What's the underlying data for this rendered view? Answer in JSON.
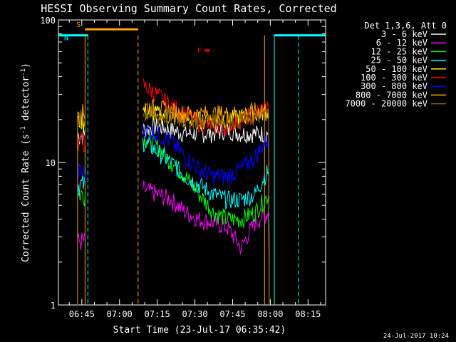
{
  "chart_data": {
    "type": "line",
    "title": "HESSI Observing Summary Count Rates, Corrected",
    "xlabel": "Start Time (23-Jul-17 06:35:42)",
    "ylabel": "Corrected Count Rate (s⁻¹ detector⁻¹)",
    "ylabel_main": "Corrected Count Rate (s",
    "ylabel_mid": " detector",
    "ylabel_end": ")",
    "ylabel_sup": "-1",
    "yscale": "log",
    "ylim": [
      1,
      100
    ],
    "xlim_minutes": [
      35.7,
      142
    ],
    "x_ticks": [
      {
        "m": 45,
        "label": "06:45"
      },
      {
        "m": 60,
        "label": "07:00"
      },
      {
        "m": 75,
        "label": "07:15"
      },
      {
        "m": 90,
        "label": "07:30"
      },
      {
        "m": 105,
        "label": "07:45"
      },
      {
        "m": 120,
        "label": "08:00"
      },
      {
        "m": 135,
        "label": "08:15"
      }
    ],
    "y_ticks": [
      {
        "v": 1,
        "label": "1"
      },
      {
        "v": 10,
        "label": "10"
      },
      {
        "v": 100,
        "label": "100"
      }
    ],
    "legend_header": "Det 1,3,6, Att 0",
    "legend_placement": "right",
    "series": [
      {
        "name": "3 - 6 keV",
        "color": "#ffffff",
        "seg1": 15.5,
        "seg2": [
          17,
          18,
          17,
          16,
          16,
          16,
          17,
          16,
          16,
          16
        ]
      },
      {
        "name": "6 - 12 keV",
        "color": "#ff00ff",
        "seg1": 2.8,
        "seg2": [
          6.5,
          6.0,
          5.5,
          4.5,
          4.0,
          3.8,
          3.5,
          2.5,
          3.8,
          4.5
        ]
      },
      {
        "name": "12 - 25 keV",
        "color": "#00ff00",
        "seg1": 6.0,
        "seg2": [
          15,
          13,
          10,
          8,
          6,
          4.5,
          4.0,
          4.0,
          4.5,
          6.0
        ]
      },
      {
        "name": "25 - 50 keV",
        "color": "#00ffff",
        "seg1": 7.0,
        "seg2": [
          14,
          12,
          10,
          8,
          7,
          6,
          5.5,
          5.5,
          6.0,
          9.0
        ]
      },
      {
        "name": "50 - 100 keV",
        "color": "#ffff00",
        "seg1": 20.0,
        "seg2": [
          23,
          22,
          21,
          20,
          20,
          20,
          20,
          21,
          22,
          23
        ]
      },
      {
        "name": "100 - 300 keV",
        "color": "#ff0000",
        "seg1": 14.0,
        "seg2": [
          35,
          30,
          25,
          22,
          19,
          18,
          18,
          20,
          22,
          25
        ]
      },
      {
        "name": "300 - 800 keV",
        "color": "#0000ff",
        "seg1": 8.5,
        "seg2": [
          17,
          16,
          14,
          11,
          9,
          8,
          8,
          9,
          11,
          15
        ]
      },
      {
        "name": "800 - 7000 keV",
        "color": "#ffa500",
        "seg1": 22.0,
        "seg2": [
          25,
          24,
          23,
          22,
          22,
          22,
          22,
          22,
          23,
          24
        ]
      },
      {
        "name": "7000 - 20000 keV",
        "color": "#8b6508",
        "seg1": 20.0,
        "seg2": [
          22,
          21,
          21,
          20,
          20,
          20,
          20,
          20,
          21,
          22
        ]
      }
    ],
    "flags": [
      {
        "label": "S",
        "color": "#ffa500",
        "m_start": 46.3,
        "m_end": 67.4,
        "v": 86
      },
      {
        "label": "N",
        "color": "#00ffff",
        "m_start": 35.7,
        "m_end": 47.4,
        "v": 78
      },
      {
        "label": "",
        "color": "#00ffff",
        "m_start": 121.6,
        "m_end": 142,
        "v": 78
      },
      {
        "label": "F",
        "color": "#ff0000",
        "m_start": 93.8,
        "m_end": 96.0,
        "v": 61
      }
    ],
    "vlines": [
      {
        "m": 46.3,
        "color": "#ffa500",
        "dash": false
      },
      {
        "m": 47.4,
        "color": "#00ffff",
        "dash": true
      },
      {
        "m": 67.4,
        "color": "#ffa500",
        "dash": true
      },
      {
        "m": 117.7,
        "color": "#ffa500",
        "dash": false
      },
      {
        "m": 121.6,
        "color": "#00ffff",
        "dash": false
      },
      {
        "m": 131.2,
        "color": "#00ffff",
        "dash": true
      }
    ],
    "segments": [
      {
        "m_start": 43.3,
        "m_end": 46.6
      },
      {
        "m_start": 69.3,
        "m_end": 119.6
      }
    ],
    "timestamp": "24-Jul-2017 10:24"
  }
}
